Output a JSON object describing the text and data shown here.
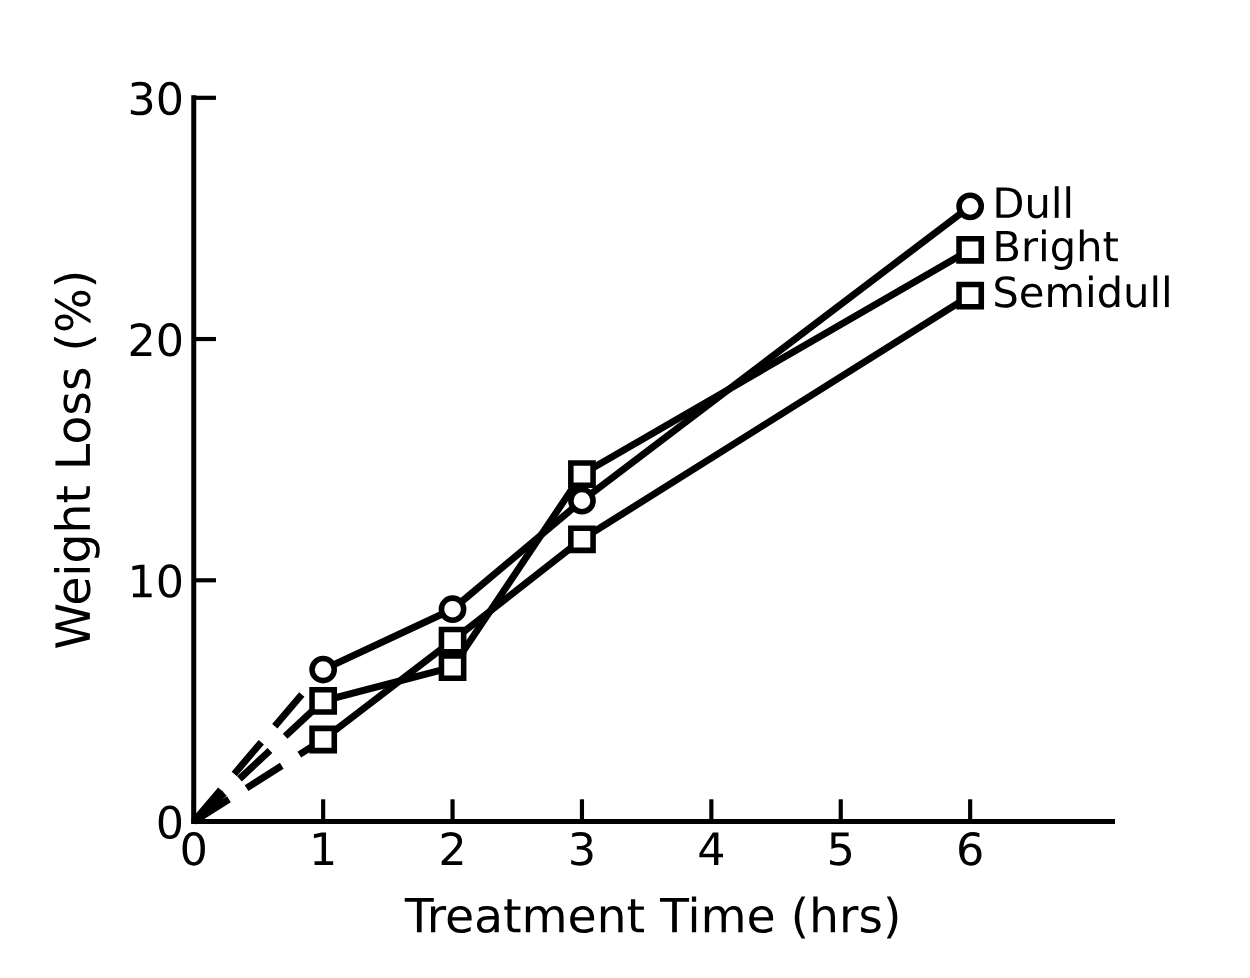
{
  "chart_data": {
    "type": "line",
    "xlabel": "Treatment Time (hrs)",
    "ylabel": "Weight Loss (%)",
    "xlim": [
      0,
      7.1
    ],
    "ylim": [
      0,
      30
    ],
    "xticks": [
      0,
      1,
      2,
      3,
      4,
      5,
      6
    ],
    "yticks": [
      0,
      10,
      20,
      30
    ],
    "grid": false,
    "legend": false,
    "series": [
      {
        "name": "Dull",
        "color": "#000000",
        "marker": "circle",
        "line_style": "solid",
        "x": [
          1,
          2,
          3,
          6
        ],
        "values": [
          6.3,
          8.8,
          13.3,
          25.5
        ]
      },
      {
        "name": "Bright",
        "color": "#000000",
        "marker": "square",
        "line_style": "solid",
        "x": [
          1,
          2,
          3,
          6
        ],
        "values": [
          5.0,
          6.4,
          14.4,
          23.7
        ]
      },
      {
        "name": "Semidull",
        "color": "#000000",
        "marker": "square",
        "line_style": "solid",
        "x": [
          1,
          2,
          3,
          6
        ],
        "values": [
          3.4,
          7.5,
          11.7,
          21.8
        ]
      },
      {
        "color": "#000000",
        "marker": "none",
        "line_style": "dashed",
        "x": [
          0,
          1
        ],
        "values": [
          0,
          6.3
        ]
      },
      {
        "color": "#000000",
        "marker": "none",
        "line_style": "dashed",
        "x": [
          0,
          1
        ],
        "values": [
          0,
          5.0
        ]
      },
      {
        "color": "#000000",
        "marker": "none",
        "line_style": "dashed",
        "x": [
          0,
          1
        ],
        "values": [
          0,
          3.4
        ]
      }
    ]
  }
}
